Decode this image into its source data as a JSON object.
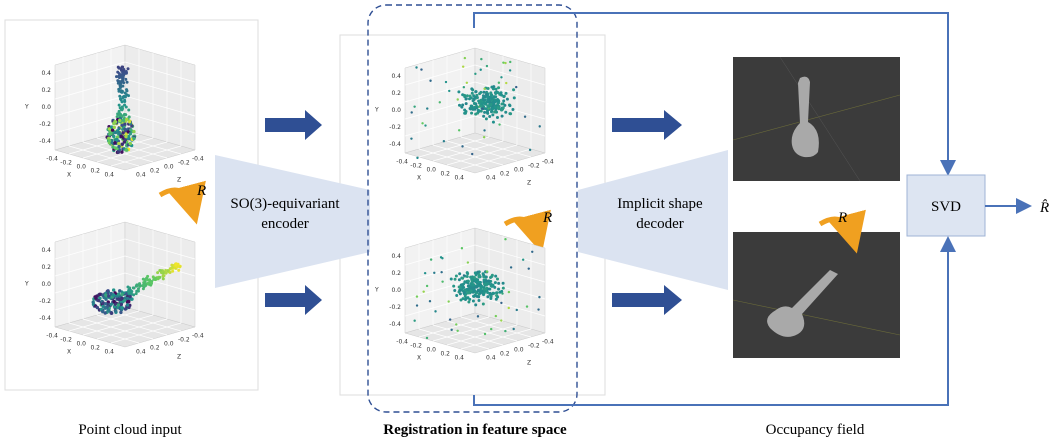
{
  "labels": {
    "input": "Point cloud input",
    "feature": "Registration in feature space",
    "occupancy": "Occupancy field"
  },
  "encoder": [
    "SO(3)-equivariant",
    "encoder"
  ],
  "decoder": [
    "Implicit shape",
    "decoder"
  ],
  "svd": "SVD",
  "output": "R̂",
  "rotation_labels": [
    "R",
    "R",
    "R"
  ],
  "plots": [
    {
      "y_ticks": [
        "0.4",
        "0.2",
        "0.0",
        "-0.2",
        "-0.4"
      ],
      "x_ticks": [
        "-0.4",
        "-0.2",
        "0.0",
        "0.2",
        "0.4"
      ],
      "z_ticks": [
        "0.4",
        "0.2",
        "0.0",
        "-0.2",
        "-0.4"
      ],
      "axes": [
        "X",
        "Y",
        "Z"
      ]
    },
    {
      "y_ticks": [
        "0.4",
        "0.2",
        "0.0",
        "-0.2",
        "-0.4"
      ],
      "x_ticks": [
        "-0.4",
        "-0.2",
        "0.0",
        "0.2",
        "0.4"
      ],
      "z_ticks": [
        "0.4",
        "0.2",
        "0.0",
        "-0.2",
        "-0.4"
      ],
      "axes": [
        "X",
        "Y",
        "Z"
      ]
    },
    {
      "y_ticks": [
        "0.4",
        "0.2",
        "0.0",
        "-0.2",
        "-0.4"
      ],
      "x_ticks": [
        "-0.4",
        "-0.2",
        "0.0",
        "0.2",
        "0.4"
      ],
      "z_ticks": [
        "0.4",
        "0.2",
        "0.0",
        "-0.2",
        "-0.4"
      ],
      "axes": [
        "X",
        "Y",
        "Z"
      ]
    },
    {
      "y_ticks": [
        "0.4",
        "0.2",
        "0.0",
        "-0.2",
        "-0.4"
      ],
      "x_ticks": [
        "-0.4",
        "-0.2",
        "0.0",
        "0.2",
        "0.4"
      ],
      "z_ticks": [
        "0.4",
        "0.2",
        "0.0",
        "-0.2",
        "-0.4"
      ],
      "axes": [
        "X",
        "Y",
        "Z"
      ]
    }
  ]
}
